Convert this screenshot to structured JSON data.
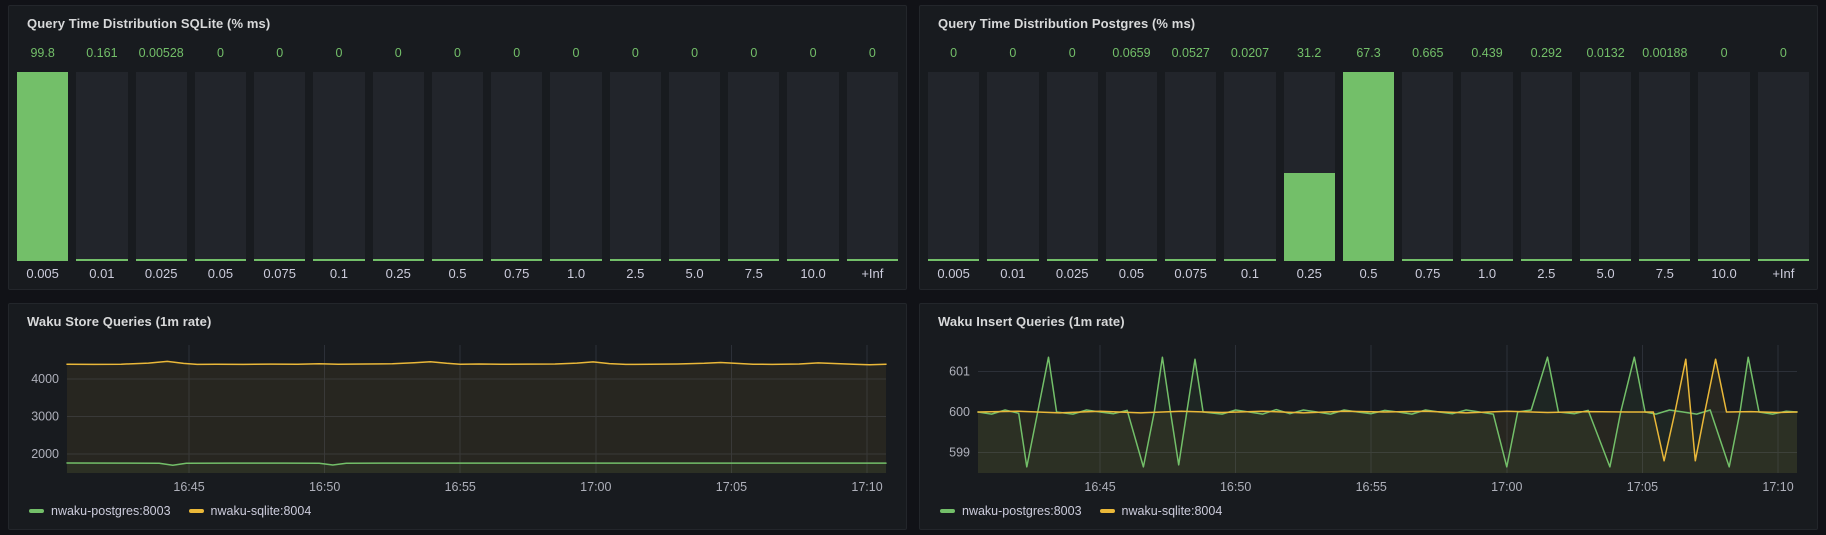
{
  "colors": {
    "green": "#73bf69",
    "yellow": "#eab839",
    "panel_bg": "#181b1f",
    "page_bg": "#111217",
    "bar_unlit": "#22252b",
    "grid": "#2c3038",
    "axis_text": "#aeb0ba",
    "title_text": "#d8d9da",
    "label_text": "#ccccdc"
  },
  "panels": [
    {
      "id": "sqlite-hist",
      "title": "Query Time Distribution SQLite (% ms)"
    },
    {
      "id": "postgres-hist",
      "title": "Query Time Distribution Postgres (% ms)"
    },
    {
      "id": "store-rate",
      "title": "Waku Store Queries (1m rate)"
    },
    {
      "id": "insert-rate",
      "title": "Waku Insert Queries (1m rate)"
    }
  ],
  "chart_data": [
    {
      "panel": "sqlite-hist",
      "type": "bar",
      "title": "Query Time Distribution SQLite (% ms)",
      "categories": [
        "0.005",
        "0.01",
        "0.025",
        "0.05",
        "0.075",
        "0.1",
        "0.25",
        "0.5",
        "0.75",
        "1.0",
        "2.5",
        "5.0",
        "7.5",
        "10.0",
        "+Inf"
      ],
      "values": [
        99.8,
        0.161,
        0.00528,
        0,
        0,
        0,
        0,
        0,
        0,
        0,
        0,
        0,
        0,
        0,
        0
      ],
      "values_display": [
        "99.8",
        "0.161",
        "0.00528",
        "0",
        "0",
        "0",
        "0",
        "0",
        "0",
        "0",
        "0",
        "0",
        "0",
        "0",
        "0"
      ],
      "bar_color": "green"
    },
    {
      "panel": "postgres-hist",
      "type": "bar",
      "title": "Query Time Distribution Postgres (% ms)",
      "categories": [
        "0.005",
        "0.01",
        "0.025",
        "0.05",
        "0.075",
        "0.1",
        "0.25",
        "0.5",
        "0.75",
        "1.0",
        "2.5",
        "5.0",
        "7.5",
        "10.0",
        "+Inf"
      ],
      "values": [
        0,
        0,
        0,
        0.0659,
        0.0527,
        0.0207,
        31.2,
        67.3,
        0.665,
        0.439,
        0.292,
        0.0132,
        0.00188,
        0,
        0
      ],
      "values_display": [
        "0",
        "0",
        "0",
        "0.0659",
        "0.0527",
        "0.0207",
        "31.2",
        "67.3",
        "0.665",
        "0.439",
        "0.292",
        "0.0132",
        "0.00188",
        "0",
        "0"
      ],
      "bar_color": "green"
    },
    {
      "panel": "store-rate",
      "type": "line",
      "title": "Waku Store Queries (1m rate)",
      "x_range": [
        0,
        30.2
      ],
      "x_ticks": [
        {
          "label": "16:45",
          "t": 4.5
        },
        {
          "label": "16:50",
          "t": 9.5
        },
        {
          "label": "16:55",
          "t": 14.5
        },
        {
          "label": "17:00",
          "t": 19.5
        },
        {
          "label": "17:05",
          "t": 24.5
        },
        {
          "label": "17:10",
          "t": 29.5
        }
      ],
      "ylim": [
        1500,
        4900
      ],
      "y_ticks": [
        2000,
        3000,
        4000
      ],
      "grid": true,
      "legend_position": "bottom-left",
      "series": [
        {
          "name": "nwaku-postgres:8003",
          "color_key": "green",
          "points": [
            [
              0,
              1765
            ],
            [
              2,
              1763
            ],
            [
              3.4,
              1760
            ],
            [
              3.9,
              1705
            ],
            [
              4.4,
              1758
            ],
            [
              6,
              1763
            ],
            [
              8,
              1762
            ],
            [
              9.3,
              1760
            ],
            [
              9.8,
              1712
            ],
            [
              10.3,
              1758
            ],
            [
              12,
              1762
            ],
            [
              14,
              1763
            ],
            [
              16,
              1762
            ],
            [
              18,
              1763
            ],
            [
              20,
              1762
            ],
            [
              22,
              1763
            ],
            [
              24,
              1762
            ],
            [
              26,
              1763
            ],
            [
              28,
              1762
            ],
            [
              30.2,
              1763
            ]
          ]
        },
        {
          "name": "nwaku-sqlite:8004",
          "color_key": "yellow",
          "points": [
            [
              0,
              4390
            ],
            [
              1,
              4385
            ],
            [
              2,
              4390
            ],
            [
              3,
              4420
            ],
            [
              3.7,
              4465
            ],
            [
              4.3,
              4410
            ],
            [
              4.8,
              4385
            ],
            [
              5.5,
              4390
            ],
            [
              6.5,
              4385
            ],
            [
              7.5,
              4392
            ],
            [
              8.5,
              4387
            ],
            [
              9.3,
              4400
            ],
            [
              10,
              4390
            ],
            [
              11,
              4395
            ],
            [
              12,
              4400
            ],
            [
              12.8,
              4430
            ],
            [
              13.4,
              4455
            ],
            [
              14,
              4415
            ],
            [
              14.5,
              4390
            ],
            [
              15.2,
              4395
            ],
            [
              16,
              4388
            ],
            [
              17,
              4392
            ],
            [
              18,
              4395
            ],
            [
              18.8,
              4420
            ],
            [
              19.4,
              4450
            ],
            [
              20,
              4405
            ],
            [
              20.6,
              4385
            ],
            [
              21.5,
              4390
            ],
            [
              22.5,
              4395
            ],
            [
              23.5,
              4415
            ],
            [
              24.1,
              4435
            ],
            [
              24.7,
              4410
            ],
            [
              25.3,
              4390
            ],
            [
              26,
              4386
            ],
            [
              27,
              4395
            ],
            [
              27.7,
              4425
            ],
            [
              28.4,
              4405
            ],
            [
              29,
              4388
            ],
            [
              29.6,
              4378
            ],
            [
              30.2,
              4390
            ]
          ]
        }
      ]
    },
    {
      "panel": "insert-rate",
      "type": "line",
      "title": "Waku Insert Queries (1m rate)",
      "x_range": [
        0,
        30.2
      ],
      "x_ticks": [
        {
          "label": "16:45",
          "t": 4.5
        },
        {
          "label": "16:50",
          "t": 9.5
        },
        {
          "label": "16:55",
          "t": 14.5
        },
        {
          "label": "17:00",
          "t": 19.5
        },
        {
          "label": "17:05",
          "t": 24.5
        },
        {
          "label": "17:10",
          "t": 29.5
        }
      ],
      "ylim": [
        598.5,
        601.65
      ],
      "y_ticks": [
        599,
        600,
        601
      ],
      "grid": true,
      "legend_position": "bottom-left",
      "series": [
        {
          "name": "nwaku-postgres:8003",
          "color_key": "green",
          "points": [
            [
              0,
              600
            ],
            [
              0.5,
              599.95
            ],
            [
              1,
              600.05
            ],
            [
              1.5,
              599.97
            ],
            [
              1.8,
              598.65
            ],
            [
              2.2,
              600
            ],
            [
              2.6,
              601.35
            ],
            [
              2.9,
              600
            ],
            [
              3.5,
              599.95
            ],
            [
              4,
              600.05
            ],
            [
              4.5,
              600
            ],
            [
              5,
              599.96
            ],
            [
              5.5,
              600.04
            ],
            [
              6.1,
              598.65
            ],
            [
              6.5,
              600
            ],
            [
              6.8,
              601.35
            ],
            [
              7.1,
              600
            ],
            [
              7.4,
              598.7
            ],
            [
              7.7,
              600
            ],
            [
              8,
              601.3
            ],
            [
              8.3,
              600
            ],
            [
              9,
              599.95
            ],
            [
              9.5,
              600.05
            ],
            [
              10,
              600
            ],
            [
              10.5,
              599.95
            ],
            [
              11,
              600.06
            ],
            [
              11.5,
              599.96
            ],
            [
              12,
              600.05
            ],
            [
              12.5,
              600
            ],
            [
              13,
              599.95
            ],
            [
              13.5,
              600.05
            ],
            [
              14,
              600
            ],
            [
              14.5,
              599.96
            ],
            [
              15,
              600.04
            ],
            [
              15.5,
              600
            ],
            [
              16,
              599.95
            ],
            [
              16.5,
              600.05
            ],
            [
              17,
              600
            ],
            [
              17.5,
              599.96
            ],
            [
              18,
              600.05
            ],
            [
              18.5,
              600
            ],
            [
              19,
              599.95
            ],
            [
              19.5,
              598.65
            ],
            [
              19.9,
              600
            ],
            [
              20.4,
              600.05
            ],
            [
              21,
              601.35
            ],
            [
              21.4,
              600
            ],
            [
              22,
              599.96
            ],
            [
              22.5,
              600.04
            ],
            [
              23.3,
              598.65
            ],
            [
              23.7,
              600
            ],
            [
              24.2,
              601.35
            ],
            [
              24.6,
              600
            ],
            [
              25,
              599.95
            ],
            [
              25.5,
              600.05
            ],
            [
              26,
              600
            ],
            [
              26.5,
              599.95
            ],
            [
              27,
              600.05
            ],
            [
              27.7,
              598.65
            ],
            [
              28.1,
              600
            ],
            [
              28.4,
              601.35
            ],
            [
              28.8,
              600
            ],
            [
              29.3,
              599.95
            ],
            [
              29.8,
              600.02
            ],
            [
              30.2,
              600
            ]
          ]
        },
        {
          "name": "nwaku-sqlite:8004",
          "color_key": "yellow",
          "points": [
            [
              0,
              600
            ],
            [
              1.5,
              600.02
            ],
            [
              3,
              599.98
            ],
            [
              4.5,
              600.02
            ],
            [
              6,
              599.98
            ],
            [
              7.5,
              600.02
            ],
            [
              9,
              599.99
            ],
            [
              10.5,
              600.02
            ],
            [
              12,
              599.98
            ],
            [
              13.5,
              600.02
            ],
            [
              15,
              600
            ],
            [
              16.5,
              600.02
            ],
            [
              18,
              599.98
            ],
            [
              19.5,
              600.02
            ],
            [
              21,
              599.99
            ],
            [
              22.5,
              600.01
            ],
            [
              24,
              600
            ],
            [
              24.9,
              600
            ],
            [
              25.3,
              598.8
            ],
            [
              25.7,
              600
            ],
            [
              26.1,
              601.3
            ],
            [
              26.45,
              598.8
            ],
            [
              26.8,
              600
            ],
            [
              27.2,
              601.3
            ],
            [
              27.6,
              600
            ],
            [
              28.5,
              600.01
            ],
            [
              29.5,
              599.99
            ],
            [
              30.2,
              600
            ]
          ]
        }
      ]
    }
  ]
}
